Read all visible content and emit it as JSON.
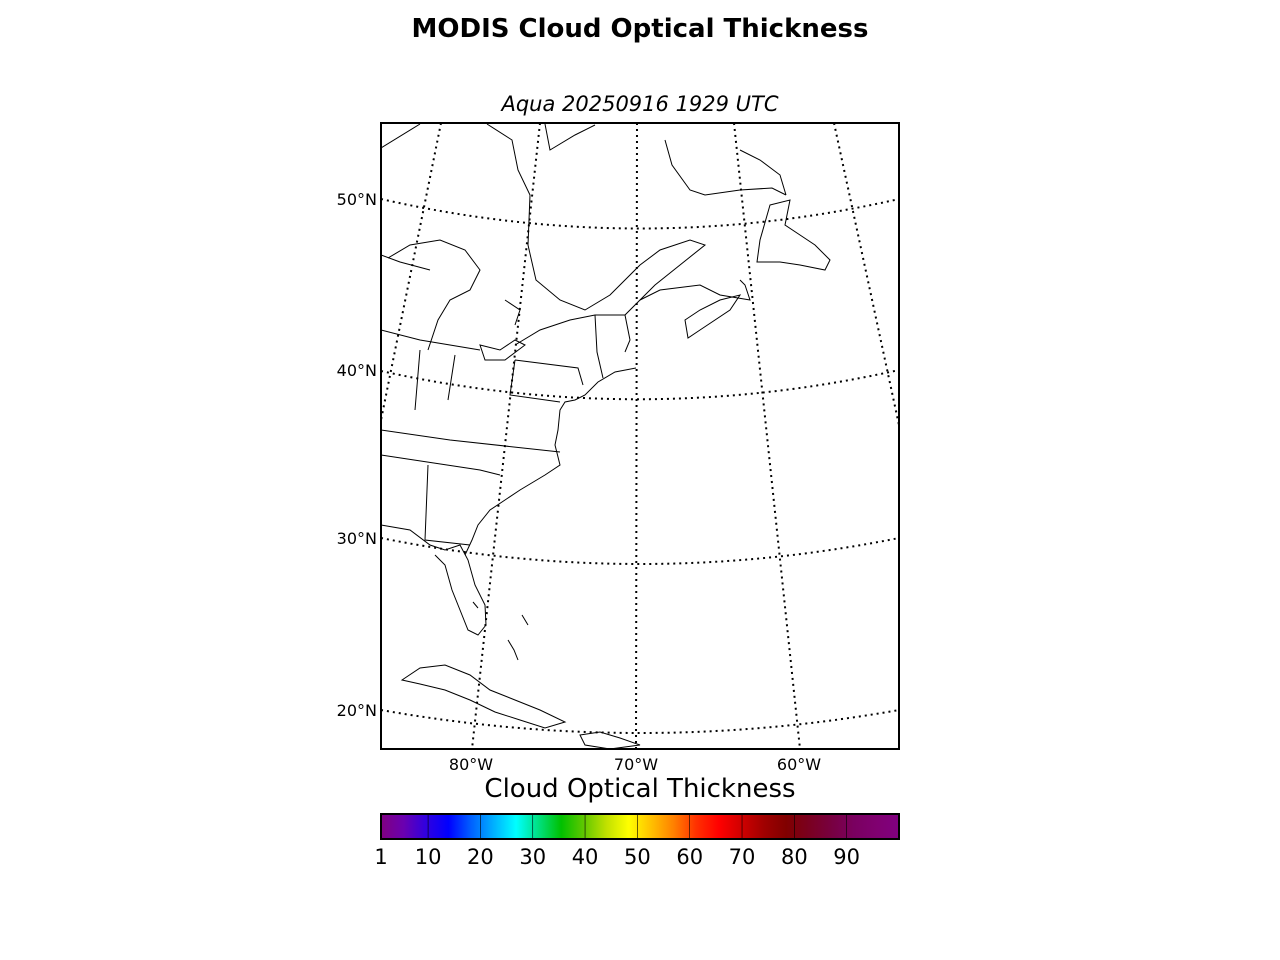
{
  "title": "MODIS Cloud Optical Thickness",
  "subtitle": "Aqua 20250916 1929 UTC",
  "map": {
    "region": "Eastern North America / Western Atlantic",
    "projection": "conic",
    "parallels": [
      20,
      30,
      40,
      50
    ],
    "meridians": [
      -80,
      -70,
      -60
    ],
    "lat_labels": [
      "50°N",
      "40°N",
      "30°N",
      "20°N"
    ],
    "lon_labels": [
      "80°W",
      "70°W",
      "60°W"
    ],
    "graticule_style": "dotted",
    "land_fill": "#ffffff",
    "coastline_color": "#000000"
  },
  "colorbar": {
    "title": "Cloud Optical Thickness",
    "tick_labels": [
      "1",
      "10",
      "20",
      "30",
      "40",
      "50",
      "60",
      "70",
      "80",
      "90"
    ],
    "range": [
      1,
      100
    ],
    "colors": [
      "#800080",
      "#6a00b0",
      "#3000e0",
      "#0000ff",
      "#0060ff",
      "#00b0ff",
      "#00ffff",
      "#00e080",
      "#00c000",
      "#60c800",
      "#c0e000",
      "#ffff00",
      "#ffc000",
      "#ff8000",
      "#ff3000",
      "#ff0000",
      "#d00000",
      "#a00000",
      "#800000",
      "#7a0020",
      "#780040",
      "#7a0060",
      "#800070",
      "#800080"
    ]
  }
}
